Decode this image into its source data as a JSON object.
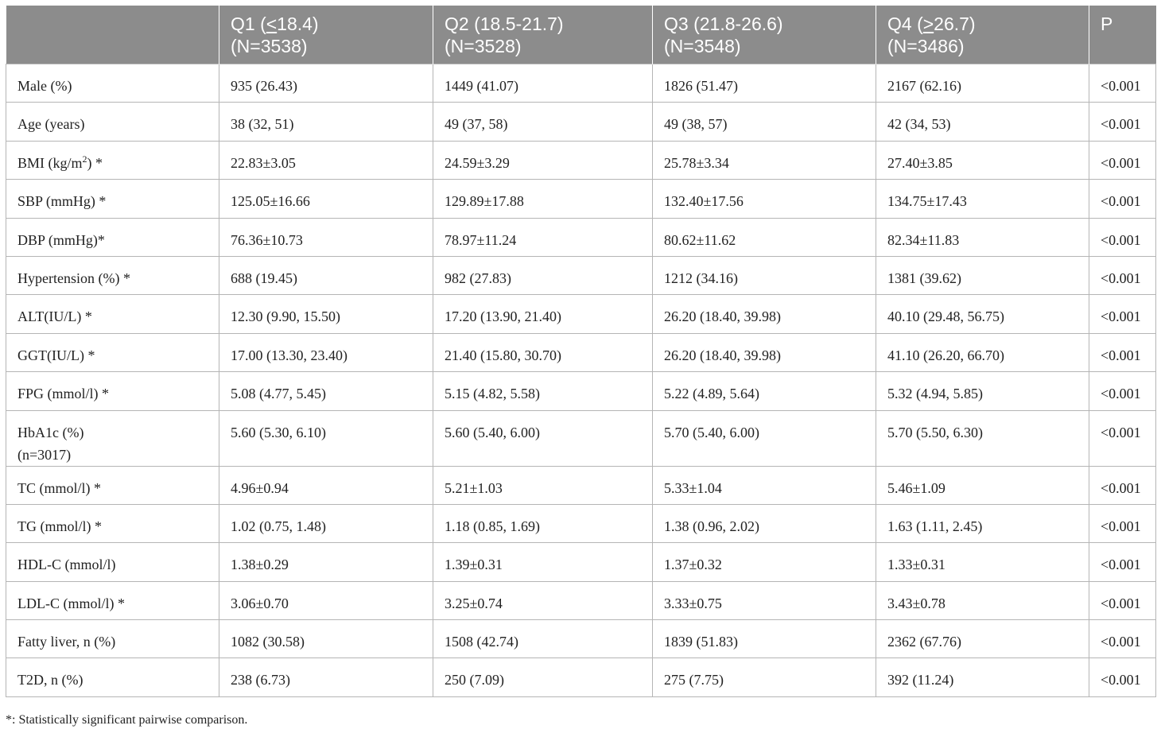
{
  "header": {
    "col0": "",
    "q1_label": "Q1 (",
    "q1_sym": "<",
    "q1_val": "18.4)",
    "q1_n": "(N=3538)",
    "q2_label": "Q2 (18.5-21.7)",
    "q2_n": "(N=3528)",
    "q3_label": "Q3 (21.8-26.6)",
    "q3_n": "(N=3548)",
    "q4_label": "Q4 (",
    "q4_sym": ">",
    "q4_val": "26.7)",
    "q4_n": "(N=3486)",
    "p": "P"
  },
  "rows": [
    {
      "label": "Male (%)",
      "q1": "935 (26.43)",
      "q2": "1449 (41.07)",
      "q3": "1826 (51.47)",
      "q4": "2167 (62.16)",
      "p": "<0.001"
    },
    {
      "label": "Age (years)",
      "q1": "38 (32, 51)",
      "q2": "49 (37, 58)",
      "q3": "49 (38, 57)",
      "q4": "42 (34, 53)",
      "p": "<0.001"
    },
    {
      "label_pre": "BMI (kg/m",
      "label_sup": "2",
      "label_post": ") *",
      "q1": "22.83±3.05",
      "q2": "24.59±3.29",
      "q3": "25.78±3.34",
      "q4": "27.40±3.85",
      "p": "<0.001"
    },
    {
      "label": "SBP (mmHg) *",
      "q1": "125.05±16.66",
      "q2": "129.89±17.88",
      "q3": "132.40±17.56",
      "q4": "134.75±17.43",
      "p": "<0.001"
    },
    {
      "label": "DBP (mmHg)*",
      "q1": "76.36±10.73",
      "q2": "78.97±11.24",
      "q3": "80.62±11.62",
      "q4": "82.34±11.83",
      "p": "<0.001"
    },
    {
      "label": "Hypertension (%) *",
      "q1": "688 (19.45)",
      "q2": "982 (27.83)",
      "q3": "1212 (34.16)",
      "q4": "1381 (39.62)",
      "p": "<0.001"
    },
    {
      "label": "ALT(IU/L) *",
      "q1": "12.30 (9.90, 15.50)",
      "q2": "17.20 (13.90, 21.40)",
      "q3": "26.20 (18.40, 39.98)",
      "q4": "40.10 (29.48, 56.75)",
      "p": "<0.001"
    },
    {
      "label": "GGT(IU/L) *",
      "q1": "17.00 (13.30, 23.40)",
      "q2": "21.40 (15.80, 30.70)",
      "q3": "26.20 (18.40, 39.98)",
      "q4": "41.10 (26.20, 66.70)",
      "p": "<0.001"
    },
    {
      "label": "FPG (mmol/l) *",
      "q1": "5.08 (4.77, 5.45)",
      "q2": "5.15 (4.82, 5.58)",
      "q3": "5.22 (4.89, 5.64)",
      "q4": "5.32 (4.94, 5.85)",
      "p": "<0.001"
    },
    {
      "label": "HbA1c (%)",
      "label2": "(n=3017)",
      "q1": "5.60 (5.30, 6.10)",
      "q2": "5.60 (5.40, 6.00)",
      "q3": "5.70 (5.40, 6.00)",
      "q4": "5.70 (5.50, 6.30)",
      "p": "<0.001"
    },
    {
      "label": "TC (mmol/l) *",
      "q1": "4.96±0.94",
      "q2": "5.21±1.03",
      "q3": "5.33±1.04",
      "q4": "5.46±1.09",
      "p": "<0.001"
    },
    {
      "label": "TG (mmol/l) *",
      "q1": "1.02 (0.75, 1.48)",
      "q2": "1.18 (0.85, 1.69)",
      "q3": "1.38 (0.96, 2.02)",
      "q4": "1.63 (1.11, 2.45)",
      "p": "<0.001"
    },
    {
      "label": "HDL-C (mmol/l)",
      "q1": "1.38±0.29",
      "q2": "1.39±0.31",
      "q3": "1.37±0.32",
      "q4": "1.33±0.31",
      "p": "<0.001"
    },
    {
      "label": "LDL-C (mmol/l) *",
      "q1": "3.06±0.70",
      "q2": "3.25±0.74",
      "q3": "3.33±0.75",
      "q4": "3.43±0.78",
      "p": "<0.001"
    },
    {
      "label": "Fatty liver, n (%)",
      "q1": "1082 (30.58)",
      "q2": "1508 (42.74)",
      "q3": "1839 (51.83)",
      "q4": "2362 (67.76)",
      "p": "<0.001"
    },
    {
      "label": "T2D, n (%)",
      "q1": "238 (6.73)",
      "q2": "250 (7.09)",
      "q3": "275 (7.75)",
      "q4": "392 (11.24)",
      "p": "<0.001"
    }
  ],
  "footnote": "*: Statistically significant pairwise comparison."
}
